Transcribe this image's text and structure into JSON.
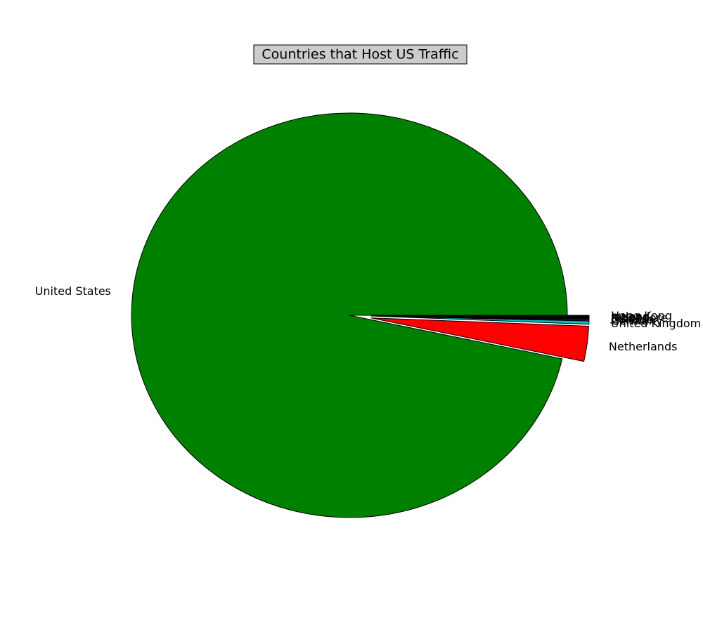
{
  "chart_data": {
    "type": "pie",
    "title": "Countries that Host US Traffic",
    "start_angle_deg": 0,
    "direction": "counterclockwise",
    "slices": [
      {
        "label": "United States",
        "value": 96.55,
        "color": "#008000",
        "explode": false
      },
      {
        "label": "Netherlands",
        "value": 2.8,
        "color": "#ff0000",
        "explode": true
      },
      {
        "label": "United Kingdom",
        "value": 0.25,
        "color": "#00bfbf",
        "explode": true
      },
      {
        "label": "Germany",
        "value": 0.08,
        "color": "#bf00bf",
        "explode": true
      },
      {
        "label": "Canada",
        "value": 0.07,
        "color": "#bfbf00",
        "explode": true
      },
      {
        "label": "France",
        "value": 0.06,
        "color": "#000000",
        "explode": true
      },
      {
        "label": "Singapore",
        "value": 0.05,
        "color": "#ffffff",
        "explode": true
      },
      {
        "label": "Japan",
        "value": 0.05,
        "color": "#0000ff",
        "explode": true
      },
      {
        "label": "Ireland",
        "value": 0.05,
        "color": "#008000",
        "explode": true
      },
      {
        "label": "Hong Kong",
        "value": 0.04,
        "color": "#ff0000",
        "explode": true
      }
    ]
  }
}
